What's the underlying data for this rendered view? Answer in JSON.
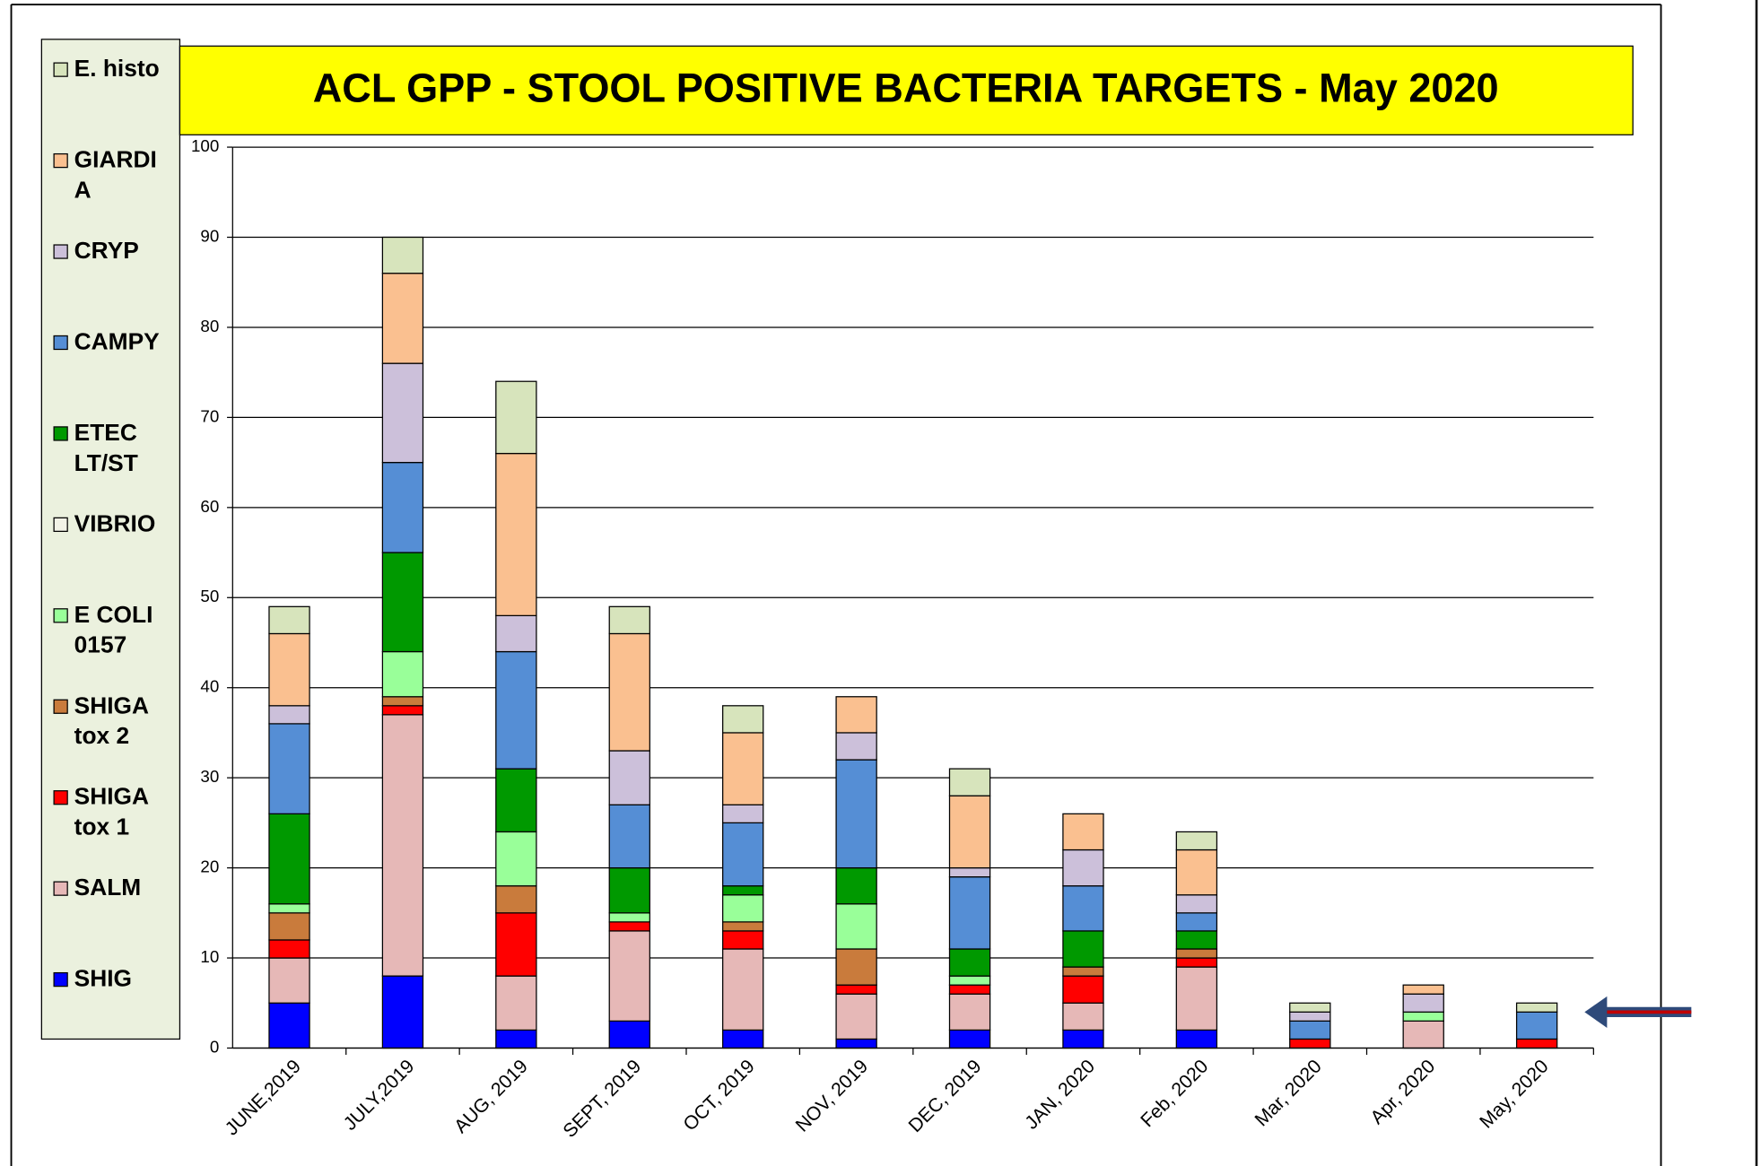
{
  "chart_data": {
    "type": "stacked_bar",
    "title": "ACL GPP - STOOL POSITIVE BACTERIA TARGETS - May 2020",
    "categories": [
      "JUNE,2019",
      "JULY,2019",
      "AUG, 2019",
      "SEPT, 2019",
      "OCT, 2019",
      "NOV, 2019",
      "DEC, 2019",
      "JAN, 2020",
      "Feb, 2020",
      "Mar, 2020",
      "Apr, 2020",
      "May, 2020"
    ],
    "series": [
      {
        "name": "SHIG",
        "color": "#0000ff",
        "values": [
          5,
          8,
          2,
          3,
          2,
          1,
          2,
          2,
          2,
          0,
          0,
          0
        ]
      },
      {
        "name": "SALM",
        "color": "#e6b8b7",
        "values": [
          5,
          29,
          6,
          10,
          9,
          5,
          4,
          3,
          7,
          0,
          3,
          0
        ]
      },
      {
        "name": "SHIGA tox 1",
        "color": "#ff0000",
        "values": [
          2,
          1,
          7,
          1,
          2,
          1,
          1,
          3,
          1,
          1,
          0,
          1
        ]
      },
      {
        "name": "SHIGA tox 2",
        "color": "#c97b3c",
        "values": [
          3,
          1,
          3,
          0,
          1,
          4,
          0,
          1,
          1,
          0,
          0,
          0
        ]
      },
      {
        "name": "E COLI 0157",
        "color": "#99ff99",
        "values": [
          1,
          5,
          6,
          1,
          3,
          5,
          1,
          0,
          0,
          0,
          1,
          0
        ]
      },
      {
        "name": "VIBRIO",
        "color": "#f2f2e6",
        "values": [
          0,
          0,
          0,
          0,
          0,
          0,
          0,
          0,
          0,
          0,
          0,
          0
        ]
      },
      {
        "name": "ETEC LT/ST",
        "color": "#009900",
        "values": [
          10,
          11,
          7,
          5,
          1,
          4,
          3,
          4,
          2,
          0,
          0,
          0
        ]
      },
      {
        "name": "CAMPY",
        "color": "#558ed5",
        "values": [
          10,
          10,
          13,
          7,
          7,
          12,
          8,
          5,
          2,
          2,
          0,
          3
        ]
      },
      {
        "name": "CRYP",
        "color": "#ccc0da",
        "values": [
          2,
          11,
          4,
          6,
          2,
          3,
          1,
          4,
          2,
          1,
          2,
          0
        ]
      },
      {
        "name": "GIARDIA",
        "color": "#fac090",
        "values": [
          8,
          10,
          18,
          13,
          8,
          4,
          8,
          4,
          5,
          0,
          1,
          0
        ]
      },
      {
        "name": "E. histo",
        "color": "#d7e4bc",
        "values": [
          3,
          4,
          8,
          3,
          3,
          0,
          3,
          0,
          2,
          1,
          0,
          1
        ]
      }
    ],
    "ylim": [
      0,
      100
    ],
    "yticks": [
      0,
      10,
      20,
      30,
      40,
      50,
      60,
      70,
      80,
      90,
      100
    ],
    "grid": true
  }
}
